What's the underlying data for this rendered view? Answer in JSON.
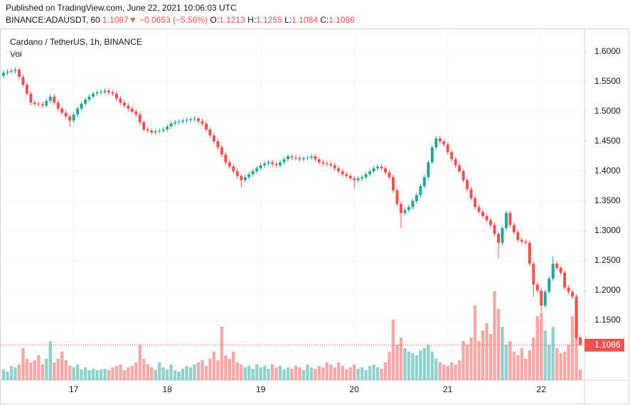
{
  "header": {
    "published": "Published on TradingView.com, June 22, 2021 10:06:03 UTC",
    "symbol": "BINANCE:ADAUSDT, 60",
    "price": "1.1087",
    "change": "−0.0653 (−5.56%)",
    "ohlc_labels": [
      "O:",
      "H:",
      "L:",
      "C:"
    ]
  },
  "chart_data": {
    "type": "candlestick",
    "title": "Cardano / TetherUS, 1h, BINANCE",
    "volume_label": "Vol",
    "up_color": "#26a69a",
    "down_color": "#ef5350",
    "grid": true,
    "ylim": [
      1.05,
      1.6393
    ],
    "yticks": [
      {
        "value": 1.15,
        "label": "1.1500"
      },
      {
        "value": 1.2,
        "label": "1.2000"
      },
      {
        "value": 1.25,
        "label": "1.2500"
      },
      {
        "value": 1.3,
        "label": "1.3000"
      },
      {
        "value": 1.35,
        "label": "1.3500"
      },
      {
        "value": 1.4,
        "label": "1.4000"
      },
      {
        "value": 1.45,
        "label": "1.4500"
      },
      {
        "value": 1.5,
        "label": "1.5000"
      },
      {
        "value": 1.55,
        "label": "1.5500"
      },
      {
        "value": 1.6,
        "label": "1.6000"
      }
    ],
    "x": [
      null,
      null,
      null,
      null,
      null,
      null,
      null,
      null,
      null,
      null,
      null,
      null,
      null,
      null,
      null,
      null,
      null,
      null,
      "17",
      null,
      null,
      null,
      null,
      null,
      null,
      null,
      null,
      null,
      null,
      null,
      null,
      null,
      null,
      null,
      null,
      null,
      null,
      null,
      null,
      null,
      null,
      null,
      "18",
      null,
      null,
      null,
      null,
      null,
      null,
      null,
      null,
      null,
      null,
      null,
      null,
      null,
      null,
      null,
      null,
      null,
      null,
      null,
      null,
      null,
      null,
      null,
      "19",
      null,
      null,
      null,
      null,
      null,
      null,
      null,
      null,
      null,
      null,
      null,
      null,
      null,
      null,
      null,
      null,
      null,
      null,
      null,
      null,
      null,
      null,
      null,
      "20",
      null,
      null,
      null,
      null,
      null,
      null,
      null,
      null,
      null,
      null,
      null,
      null,
      null,
      null,
      null,
      null,
      null,
      null,
      null,
      null,
      null,
      null,
      null,
      "21",
      null,
      null,
      null,
      null,
      null,
      null,
      null,
      null,
      null,
      null,
      null,
      null,
      null,
      null,
      null,
      null,
      null,
      null,
      null,
      null,
      null,
      null,
      null,
      "22",
      null,
      null,
      null,
      null,
      null,
      null,
      null,
      null,
      null,
      null
    ],
    "open": [
      1.56,
      1.565,
      1.567,
      1.568,
      1.57,
      1.558,
      1.545,
      1.53,
      1.515,
      1.513,
      1.512,
      1.51,
      1.518,
      1.525,
      1.515,
      1.505,
      1.498,
      1.492,
      1.485,
      1.495,
      1.505,
      1.513,
      1.52,
      1.525,
      1.53,
      1.532,
      1.533,
      1.535,
      1.532,
      1.53,
      1.522,
      1.515,
      1.51,
      1.505,
      1.5,
      1.495,
      1.482,
      1.47,
      1.468,
      1.465,
      1.467,
      1.468,
      1.47,
      1.475,
      1.48,
      1.482,
      1.483,
      1.485,
      1.486,
      1.487,
      1.488,
      1.484,
      1.48,
      1.47,
      1.46,
      1.45,
      1.44,
      1.428,
      1.415,
      1.408,
      1.4,
      1.392,
      1.385,
      1.39,
      1.395,
      1.4,
      1.405,
      1.41,
      1.413,
      1.415,
      1.412,
      1.41,
      1.415,
      1.42,
      1.425,
      1.423,
      1.422,
      1.42,
      1.422,
      1.423,
      1.425,
      1.42,
      1.415,
      1.413,
      1.412,
      1.41,
      1.405,
      1.4,
      1.395,
      1.392,
      1.388,
      1.385,
      1.388,
      1.39,
      1.395,
      1.4,
      1.405,
      1.408,
      1.405,
      1.398,
      1.39,
      1.368,
      1.345,
      1.33,
      1.335,
      1.34,
      1.35,
      1.36,
      1.375,
      1.39,
      1.415,
      1.44,
      1.455,
      1.45,
      1.445,
      1.432,
      1.42,
      1.41,
      1.4,
      1.385,
      1.37,
      1.355,
      1.34,
      1.332,
      1.325,
      1.318,
      1.31,
      1.295,
      1.28,
      1.305,
      1.33,
      1.31,
      1.298,
      1.285,
      1.282,
      1.28,
      1.245,
      1.21,
      1.2,
      1.175,
      1.198,
      1.22,
      1.245,
      1.238,
      1.23,
      1.205,
      1.198,
      1.19,
      1.1213
    ],
    "high": [
      1.569,
      1.571,
      1.572,
      1.574,
      1.574,
      1.562,
      1.549,
      1.534,
      1.519,
      1.517,
      1.516,
      1.522,
      1.529,
      1.529,
      1.519,
      1.509,
      1.502,
      1.496,
      1.499,
      1.509,
      1.517,
      1.524,
      1.529,
      1.534,
      1.536,
      1.537,
      1.539,
      1.539,
      1.536,
      1.534,
      1.526,
      1.519,
      1.514,
      1.509,
      1.504,
      1.499,
      1.486,
      1.474,
      1.472,
      1.471,
      1.472,
      1.474,
      1.479,
      1.484,
      1.486,
      1.487,
      1.489,
      1.49,
      1.491,
      1.492,
      1.492,
      1.488,
      1.484,
      1.474,
      1.464,
      1.454,
      1.444,
      1.432,
      1.419,
      1.412,
      1.404,
      1.396,
      1.394,
      1.399,
      1.404,
      1.409,
      1.414,
      1.417,
      1.419,
      1.419,
      1.416,
      1.419,
      1.424,
      1.429,
      1.429,
      1.427,
      1.426,
      1.426,
      1.427,
      1.429,
      1.429,
      1.424,
      1.419,
      1.417,
      1.416,
      1.414,
      1.409,
      1.404,
      1.399,
      1.396,
      1.392,
      1.392,
      1.394,
      1.399,
      1.404,
      1.409,
      1.412,
      1.412,
      1.409,
      1.402,
      1.394,
      1.372,
      1.349,
      1.339,
      1.344,
      1.354,
      1.364,
      1.379,
      1.394,
      1.419,
      1.444,
      1.459,
      1.459,
      1.454,
      1.449,
      1.436,
      1.424,
      1.414,
      1.404,
      1.389,
      1.374,
      1.359,
      1.344,
      1.336,
      1.329,
      1.322,
      1.314,
      1.299,
      1.309,
      1.334,
      1.334,
      1.314,
      1.302,
      1.289,
      1.286,
      1.284,
      1.249,
      1.214,
      1.204,
      1.202,
      1.224,
      1.258,
      1.249,
      1.242,
      1.234,
      1.209,
      1.202,
      1.194,
      1.1255
    ],
    "low": [
      1.556,
      1.561,
      1.563,
      1.564,
      1.554,
      1.541,
      1.526,
      1.511,
      1.509,
      1.508,
      1.506,
      1.506,
      1.514,
      1.511,
      1.501,
      1.494,
      1.488,
      1.475,
      1.481,
      1.491,
      1.501,
      1.509,
      1.516,
      1.521,
      1.526,
      1.528,
      1.529,
      1.528,
      1.526,
      1.518,
      1.511,
      1.506,
      1.501,
      1.496,
      1.491,
      1.478,
      1.466,
      1.464,
      1.461,
      1.461,
      1.463,
      1.464,
      1.466,
      1.471,
      1.476,
      1.478,
      1.479,
      1.481,
      1.482,
      1.483,
      1.48,
      1.476,
      1.466,
      1.456,
      1.446,
      1.436,
      1.424,
      1.411,
      1.404,
      1.396,
      1.388,
      1.373,
      1.381,
      1.386,
      1.391,
      1.396,
      1.401,
      1.406,
      1.409,
      1.408,
      1.406,
      1.406,
      1.411,
      1.416,
      1.419,
      1.418,
      1.416,
      1.416,
      1.418,
      1.419,
      1.416,
      1.411,
      1.409,
      1.408,
      1.406,
      1.401,
      1.396,
      1.391,
      1.388,
      1.384,
      1.372,
      1.381,
      1.384,
      1.386,
      1.391,
      1.396,
      1.401,
      1.401,
      1.394,
      1.386,
      1.364,
      1.341,
      1.305,
      1.326,
      1.331,
      1.336,
      1.346,
      1.356,
      1.371,
      1.386,
      1.411,
      1.436,
      1.446,
      1.441,
      1.428,
      1.416,
      1.406,
      1.396,
      1.381,
      1.366,
      1.351,
      1.336,
      1.328,
      1.321,
      1.314,
      1.306,
      1.291,
      1.255,
      1.276,
      1.301,
      1.306,
      1.294,
      1.281,
      1.278,
      1.276,
      1.241,
      1.19,
      1.196,
      1.165,
      1.171,
      1.194,
      1.216,
      1.234,
      1.226,
      1.201,
      1.194,
      1.186,
      1.117,
      1.1084
    ],
    "close": [
      1.565,
      1.567,
      1.568,
      1.57,
      1.558,
      1.545,
      1.53,
      1.515,
      1.513,
      1.512,
      1.51,
      1.518,
      1.525,
      1.515,
      1.505,
      1.498,
      1.492,
      1.485,
      1.495,
      1.505,
      1.513,
      1.52,
      1.525,
      1.53,
      1.532,
      1.533,
      1.535,
      1.532,
      1.53,
      1.522,
      1.515,
      1.51,
      1.505,
      1.5,
      1.495,
      1.482,
      1.47,
      1.468,
      1.465,
      1.467,
      1.468,
      1.47,
      1.475,
      1.48,
      1.482,
      1.483,
      1.485,
      1.486,
      1.487,
      1.488,
      1.484,
      1.48,
      1.47,
      1.46,
      1.45,
      1.44,
      1.428,
      1.415,
      1.408,
      1.4,
      1.392,
      1.385,
      1.39,
      1.395,
      1.4,
      1.405,
      1.41,
      1.413,
      1.415,
      1.412,
      1.41,
      1.415,
      1.42,
      1.425,
      1.423,
      1.422,
      1.42,
      1.422,
      1.423,
      1.425,
      1.42,
      1.415,
      1.413,
      1.412,
      1.41,
      1.405,
      1.4,
      1.395,
      1.392,
      1.388,
      1.385,
      1.388,
      1.39,
      1.395,
      1.4,
      1.405,
      1.408,
      1.405,
      1.398,
      1.39,
      1.368,
      1.345,
      1.33,
      1.335,
      1.34,
      1.35,
      1.36,
      1.375,
      1.39,
      1.415,
      1.44,
      1.455,
      1.45,
      1.445,
      1.432,
      1.42,
      1.41,
      1.4,
      1.385,
      1.37,
      1.355,
      1.34,
      1.332,
      1.325,
      1.318,
      1.31,
      1.295,
      1.28,
      1.305,
      1.33,
      1.31,
      1.298,
      1.285,
      1.282,
      1.28,
      1.245,
      1.21,
      1.2,
      1.175,
      1.198,
      1.22,
      1.245,
      1.238,
      1.23,
      1.205,
      1.198,
      1.19,
      1.1213,
      1.1086
    ],
    "volume": [
      15,
      12,
      20,
      18,
      22,
      45,
      30,
      25,
      28,
      35,
      22,
      30,
      55,
      25,
      30,
      40,
      28,
      20,
      18,
      22,
      15,
      18,
      14,
      16,
      14,
      15,
      16,
      14,
      18,
      20,
      22,
      14,
      18,
      20,
      25,
      50,
      30,
      22,
      18,
      15,
      25,
      18,
      15,
      22,
      14,
      12,
      16,
      20,
      18,
      22,
      25,
      28,
      20,
      30,
      40,
      28,
      75,
      35,
      30,
      40,
      25,
      22,
      18,
      20,
      16,
      22,
      18,
      20,
      16,
      22,
      18,
      20,
      15,
      18,
      16,
      20,
      18,
      14,
      22,
      18,
      16,
      20,
      18,
      25,
      22,
      18,
      25,
      20,
      15,
      18,
      22,
      16,
      18,
      14,
      20,
      22,
      18,
      16,
      25,
      40,
      85,
      50,
      60,
      45,
      40,
      38,
      35,
      42,
      45,
      50,
      40,
      30,
      25,
      22,
      20,
      25,
      22,
      28,
      55,
      50,
      60,
      105,
      55,
      70,
      80,
      65,
      125,
      100,
      75,
      50,
      55,
      40,
      35,
      45,
      30,
      42,
      60,
      90,
      95,
      70,
      50,
      75,
      45,
      38,
      40,
      50,
      90,
      110,
      15
    ]
  }
}
